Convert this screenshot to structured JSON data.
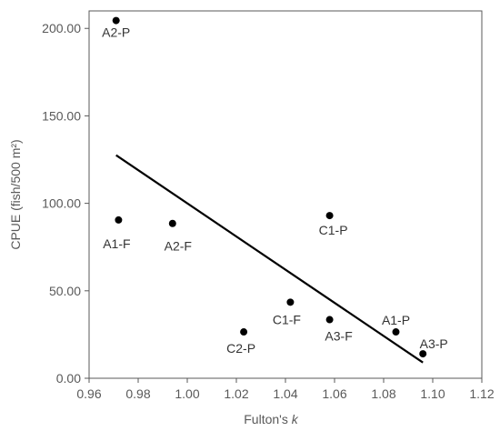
{
  "chart_data": {
    "type": "scatter",
    "title": "",
    "xlabel": "Fulton's ",
    "xlabel_italic": "k",
    "ylabel": "CPUE (fish/500 m²)",
    "xlim": [
      0.96,
      1.12
    ],
    "ylim": [
      0,
      210
    ],
    "x_ticks": [
      "0.96",
      "0.98",
      "1.00",
      "1.02",
      "1.04",
      "1.06",
      "1.08",
      "1.10",
      "1.12"
    ],
    "y_ticks": [
      "0.00",
      "50.00",
      "100.00",
      "150.00",
      "200.00"
    ],
    "grid": false,
    "legend": "none",
    "points": [
      {
        "label": "A2-P",
        "x": 0.971,
        "y": 204.5
      },
      {
        "label": "A1-F",
        "x": 0.972,
        "y": 90.5
      },
      {
        "label": "A2-F",
        "x": 0.994,
        "y": 88.5
      },
      {
        "label": "C1-P",
        "x": 1.058,
        "y": 93.0
      },
      {
        "label": "C1-F",
        "x": 1.042,
        "y": 43.5
      },
      {
        "label": "C2-P",
        "x": 1.023,
        "y": 26.5
      },
      {
        "label": "A3-F",
        "x": 1.058,
        "y": 33.5
      },
      {
        "label": "A1-P",
        "x": 1.085,
        "y": 26.5
      },
      {
        "label": "A3-P",
        "x": 1.096,
        "y": 14.0
      }
    ],
    "trendline": {
      "x": [
        0.971,
        1.096
      ],
      "y": [
        127.5,
        9.0
      ]
    },
    "colors": {
      "marker": "#000000",
      "line": "#000000",
      "axis": "#595959",
      "text": "#595959"
    }
  }
}
